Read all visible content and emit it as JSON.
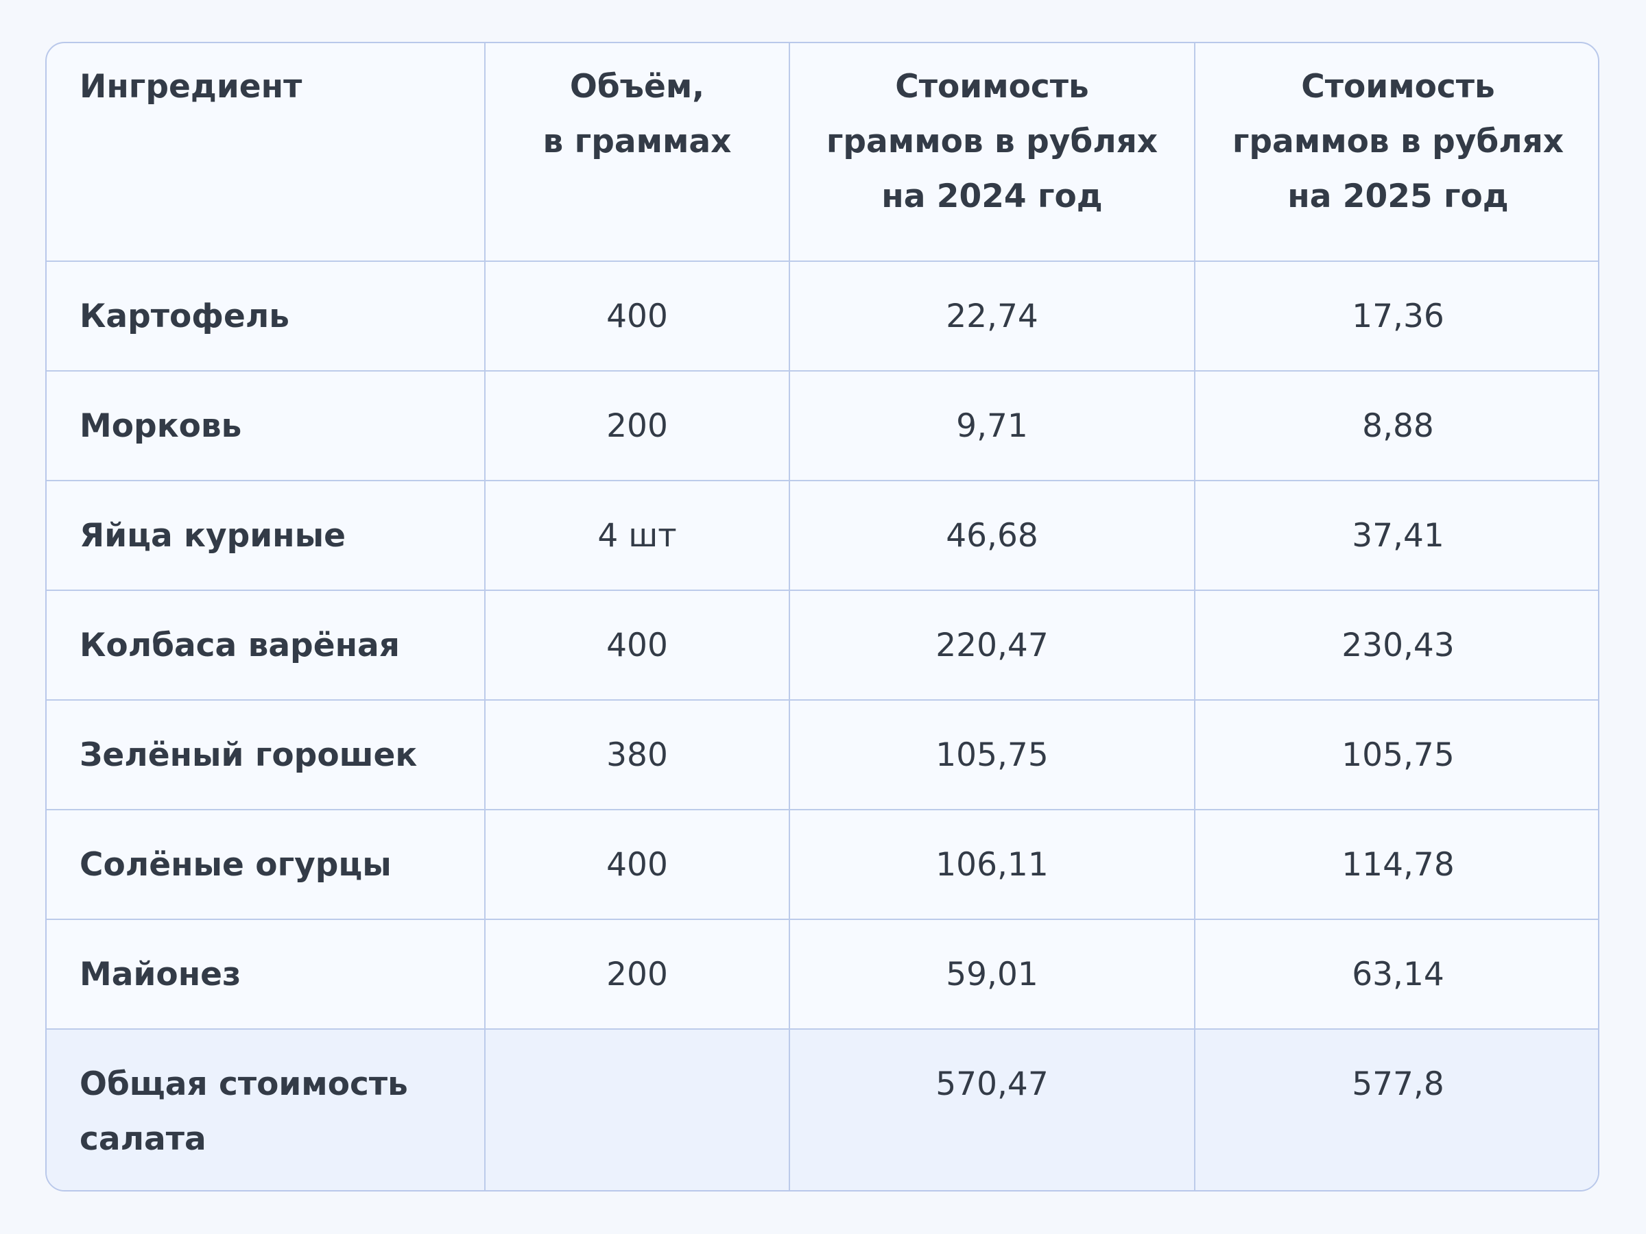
{
  "columns": [
    [
      "Ингредиент"
    ],
    [
      "Объём,",
      "в граммах"
    ],
    [
      "Стоимость",
      "граммов в рублях",
      "на 2024 год"
    ],
    [
      "Стоимость",
      "граммов в рублях",
      "на 2025 год"
    ]
  ],
  "rows": [
    {
      "name": "Картофель",
      "volume": "400",
      "cost_2024": "22,74",
      "cost_2025": "17,36"
    },
    {
      "name": "Морковь",
      "volume": "200",
      "cost_2024": "9,71",
      "cost_2025": "8,88"
    },
    {
      "name": "Яйца куриные",
      "volume": "4 шт",
      "cost_2024": "46,68",
      "cost_2025": "37,41"
    },
    {
      "name": "Колбаса варёная",
      "volume": "400",
      "cost_2024": "220,47",
      "cost_2025": "230,43"
    },
    {
      "name": "Зелёный горошек",
      "volume": "380",
      "cost_2024": "105,75",
      "cost_2025": "105,75"
    },
    {
      "name": "Солёные огурцы",
      "volume": "400",
      "cost_2024": "106,11",
      "cost_2025": "114,78"
    },
    {
      "name": "Майонез",
      "volume": "200",
      "cost_2024": "59,01",
      "cost_2025": "63,14"
    }
  ],
  "total": {
    "label_lines": [
      "Общая стоимость",
      "салата"
    ],
    "volume": "",
    "cost_2024": "570,47",
    "cost_2025": "577,8"
  },
  "colors": {
    "background": "#f5f8fd",
    "card": "#f7faff",
    "border": "#bccbea",
    "total_row": "#ecf2fd",
    "text": "#333b47"
  }
}
